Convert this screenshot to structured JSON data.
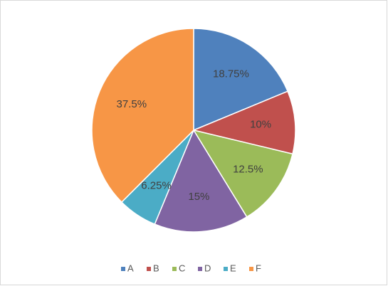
{
  "chart_data": {
    "type": "pie",
    "categories": [
      "A",
      "B",
      "C",
      "D",
      "E",
      "F"
    ],
    "values": [
      18.75,
      10,
      12.5,
      15,
      6.25,
      37.5
    ],
    "value_labels": [
      "18.75%",
      "10%",
      "12.5%",
      "15%",
      "6.25%",
      "37.5%"
    ],
    "colors": [
      "#4f81bd",
      "#c0504d",
      "#9bbb59",
      "#8064a2",
      "#4bacc6",
      "#f79646"
    ],
    "legend": "bottom"
  }
}
